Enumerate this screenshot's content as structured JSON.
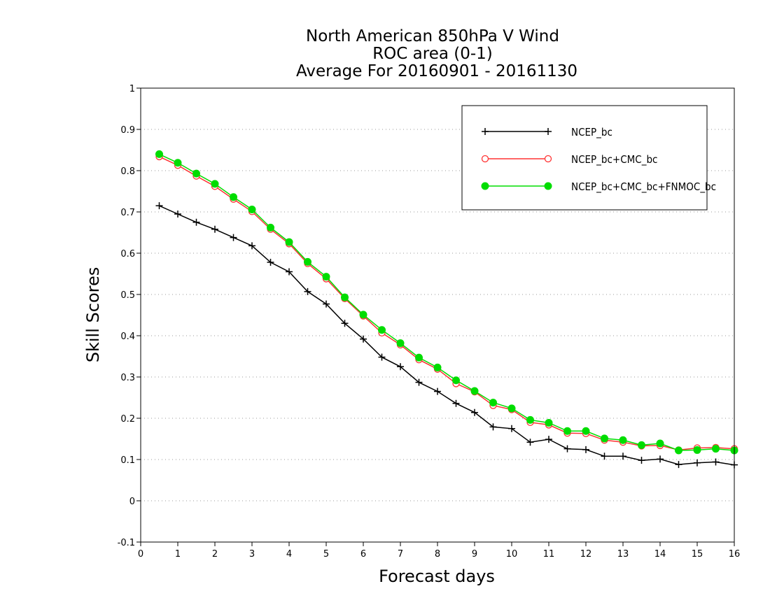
{
  "chart_data": {
    "type": "line",
    "title_lines": [
      "North American 850hPa V Wind",
      "ROC area (0-1)",
      "Average For 20160901 - 20161130"
    ],
    "xlabel": "Forecast days",
    "ylabel": "Skill Scores",
    "xlim": [
      0,
      16
    ],
    "ylim": [
      -0.1,
      1
    ],
    "xticks": [
      0,
      1,
      2,
      3,
      4,
      5,
      6,
      7,
      8,
      9,
      10,
      11,
      12,
      13,
      14,
      15,
      16
    ],
    "xtick_labels": [
      "0",
      "1",
      "2",
      "3",
      "4",
      "5",
      "6",
      "7",
      "8",
      "9",
      "10",
      "11",
      "12",
      "13",
      "14",
      "15",
      "16"
    ],
    "yticks": [
      -0.1,
      0,
      0.1,
      0.2,
      0.3,
      0.4,
      0.5,
      0.6,
      0.7,
      0.8,
      0.9,
      1
    ],
    "ytick_labels": [
      "-0.1",
      "0",
      "0.1",
      "0.2",
      "0.3",
      "0.4",
      "0.5",
      "0.6",
      "0.7",
      "0.8",
      "0.9",
      "1"
    ],
    "grid": "dotted horizontal",
    "legend_position": "top-right",
    "x": [
      0.5,
      1,
      1.5,
      2,
      2.5,
      3,
      3.5,
      4,
      4.5,
      5,
      5.5,
      6,
      6.5,
      7,
      7.5,
      8,
      8.5,
      9,
      9.5,
      10,
      10.5,
      11,
      11.5,
      12,
      12.5,
      13,
      13.5,
      14,
      14.5,
      15,
      15.5,
      16
    ],
    "series": [
      {
        "name": "NCEP_bc",
        "color": "#000000",
        "marker": "plus",
        "values": [
          0.715,
          0.695,
          0.675,
          0.658,
          0.638,
          0.618,
          0.578,
          0.555,
          0.507,
          0.477,
          0.43,
          0.392,
          0.348,
          0.325,
          0.287,
          0.265,
          0.236,
          0.214,
          0.179,
          0.175,
          0.142,
          0.149,
          0.126,
          0.124,
          0.108,
          0.108,
          0.098,
          0.101,
          0.088,
          0.092,
          0.094,
          0.087
        ]
      },
      {
        "name": "NCEP_bc+CMC_bc",
        "color": "#ff3333",
        "marker": "open-circle",
        "values": [
          0.834,
          0.813,
          0.787,
          0.762,
          0.731,
          0.701,
          0.658,
          0.623,
          0.575,
          0.538,
          0.49,
          0.448,
          0.407,
          0.378,
          0.342,
          0.319,
          0.284,
          0.264,
          0.231,
          0.221,
          0.19,
          0.184,
          0.164,
          0.163,
          0.147,
          0.142,
          0.133,
          0.134,
          0.123,
          0.128,
          0.129,
          0.126
        ]
      },
      {
        "name": "NCEP_bc+CMC_bc+FNMOC_bc",
        "color": "#00dd00",
        "marker": "filled-circle",
        "values": [
          0.84,
          0.819,
          0.793,
          0.768,
          0.736,
          0.706,
          0.662,
          0.627,
          0.579,
          0.543,
          0.493,
          0.451,
          0.414,
          0.382,
          0.347,
          0.323,
          0.292,
          0.266,
          0.238,
          0.224,
          0.196,
          0.189,
          0.169,
          0.169,
          0.151,
          0.147,
          0.135,
          0.139,
          0.122,
          0.123,
          0.126,
          0.122
        ]
      }
    ]
  }
}
